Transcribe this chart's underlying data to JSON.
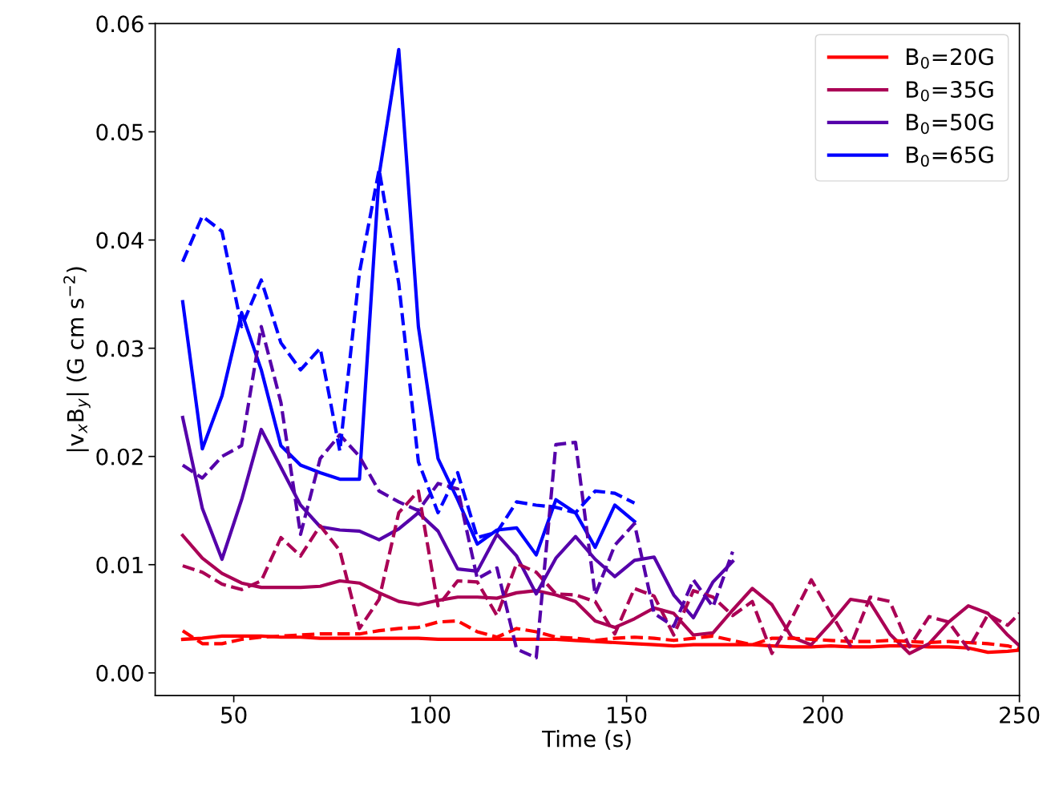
{
  "chart_data": {
    "type": "line",
    "xlabel": "Time (s)",
    "ylabel": "|v$_{x}$B$_{y}$| (G cm s$^{−2}$)",
    "xlim": [
      30,
      250
    ],
    "xticks": [
      50,
      100,
      150,
      200,
      250
    ],
    "ylim": [
      -0.0021,
      0.06
    ],
    "yticks": [
      {
        "value": 0,
        "label": "0.00"
      },
      {
        "value": 0.01,
        "label": "0.01"
      },
      {
        "value": 0.02,
        "label": "0.02"
      },
      {
        "value": 0.03,
        "label": "0.03"
      },
      {
        "value": 0.04,
        "label": "0.04"
      },
      {
        "value": 0.05,
        "label": "0.05"
      },
      {
        "value": 0.06,
        "label": "0.06"
      }
    ],
    "legend": "top right",
    "grid": false,
    "marker": "none",
    "series": [
      {
        "name": "B$_{0}$=20G",
        "color": "#ff0000",
        "line_style": "solid",
        "x": [
          37,
          42,
          47,
          52,
          57,
          62,
          67,
          72,
          77,
          82,
          87,
          92,
          97,
          102,
          107,
          112,
          117,
          122,
          127,
          132,
          137,
          142,
          147,
          152,
          157,
          162,
          167,
          172,
          177,
          182,
          187,
          192,
          197,
          202,
          207,
          212,
          217,
          222,
          227,
          232,
          237,
          242,
          247,
          250
        ],
        "values": [
          0.0031,
          0.0032,
          0.0034,
          0.0034,
          0.0034,
          0.0033,
          0.0033,
          0.0032,
          0.0032,
          0.0032,
          0.0032,
          0.0032,
          0.0032,
          0.0031,
          0.0031,
          0.0031,
          0.0031,
          0.0031,
          0.0031,
          0.0031,
          0.003,
          0.0029,
          0.0028,
          0.0027,
          0.0026,
          0.0025,
          0.0026,
          0.0026,
          0.0026,
          0.0026,
          0.0025,
          0.0024,
          0.0024,
          0.0025,
          0.0024,
          0.0024,
          0.0025,
          0.0025,
          0.0024,
          0.0024,
          0.0023,
          0.0019,
          0.002,
          0.0021
        ]
      },
      {
        "name": "B$_{0}$=35G",
        "color": "#aa0055",
        "line_style": "solid",
        "x": [
          37,
          42,
          47,
          52,
          57,
          62,
          67,
          72,
          77,
          82,
          87,
          92,
          97,
          102,
          107,
          112,
          117,
          122,
          127,
          132,
          137,
          142,
          147,
          152,
          157,
          162,
          167,
          172,
          177,
          182,
          187,
          192,
          197,
          202,
          207,
          212,
          217,
          222,
          227,
          232,
          237,
          242,
          247,
          250
        ],
        "values": [
          0.0127,
          0.0106,
          0.0092,
          0.0083,
          0.0079,
          0.0079,
          0.0079,
          0.008,
          0.0085,
          0.0083,
          0.0074,
          0.0066,
          0.0063,
          0.0067,
          0.007,
          0.007,
          0.0069,
          0.0074,
          0.0076,
          0.0072,
          0.0066,
          0.0048,
          0.0042,
          0.005,
          0.006,
          0.0055,
          0.0035,
          0.0037,
          0.0058,
          0.0078,
          0.0063,
          0.0033,
          0.0026,
          0.0046,
          0.0068,
          0.0065,
          0.0036,
          0.0018,
          0.0027,
          0.0047,
          0.0062,
          0.0055,
          0.0035,
          0.0025
        ]
      },
      {
        "name": "B$_{0}$=50G",
        "color": "#5500aa",
        "line_style": "solid",
        "x": [
          37,
          42,
          47,
          52,
          57,
          62,
          67,
          72,
          77,
          82,
          87,
          92,
          97,
          102,
          107,
          112,
          117,
          122,
          127,
          132,
          137,
          142,
          147,
          152,
          157,
          162,
          167,
          172,
          177
        ],
        "values": [
          0.0236,
          0.0152,
          0.0105,
          0.016,
          0.0225,
          0.019,
          0.0155,
          0.0135,
          0.0132,
          0.0131,
          0.0123,
          0.0133,
          0.0148,
          0.0131,
          0.0096,
          0.0094,
          0.0128,
          0.0108,
          0.0073,
          0.0106,
          0.0126,
          0.0105,
          0.0089,
          0.0104,
          0.0107,
          0.0072,
          0.0051,
          0.0084,
          0.0103
        ]
      },
      {
        "name": "B$_{0}$=65G",
        "color": "#0000ff",
        "line_style": "solid",
        "x": [
          37,
          42,
          47,
          52,
          57,
          62,
          67,
          72,
          77,
          82,
          87,
          92,
          97,
          102,
          107,
          112,
          117,
          122,
          127,
          132,
          137,
          142,
          147,
          152
        ],
        "values": [
          0.0343,
          0.0207,
          0.0256,
          0.0333,
          0.028,
          0.021,
          0.0192,
          0.0185,
          0.0179,
          0.0179,
          0.046,
          0.0576,
          0.032,
          0.0198,
          0.016,
          0.0119,
          0.0132,
          0.0134,
          0.0109,
          0.016,
          0.0148,
          0.0116,
          0.0155,
          0.014
        ]
      },
      {
        "color": "#ff0000",
        "line_style": "dashed",
        "x": [
          37,
          42,
          47,
          52,
          57,
          62,
          67,
          72,
          77,
          82,
          87,
          92,
          97,
          102,
          107,
          112,
          117,
          122,
          127,
          132,
          137,
          142,
          147,
          152,
          157,
          162,
          167,
          172,
          177,
          182,
          187,
          192,
          197,
          202,
          207,
          212,
          217,
          222,
          227,
          232,
          237,
          242,
          247,
          250
        ],
        "values": [
          0.0039,
          0.0027,
          0.0027,
          0.0031,
          0.0033,
          0.0034,
          0.0035,
          0.0036,
          0.0036,
          0.0036,
          0.0039,
          0.0041,
          0.0042,
          0.0047,
          0.0048,
          0.0038,
          0.0033,
          0.0041,
          0.0038,
          0.0033,
          0.0032,
          0.003,
          0.0032,
          0.0033,
          0.0032,
          0.003,
          0.0032,
          0.0034,
          0.003,
          0.0026,
          0.0032,
          0.0032,
          0.0031,
          0.003,
          0.0029,
          0.0029,
          0.003,
          0.0029,
          0.0028,
          0.0029,
          0.0028,
          0.0027,
          0.0025,
          0.0022
        ]
      },
      {
        "color": "#aa0055",
        "line_style": "dashed",
        "x": [
          37,
          42,
          47,
          52,
          57,
          62,
          67,
          72,
          77,
          82,
          87,
          92,
          97,
          102,
          107,
          112,
          117,
          122,
          127,
          132,
          137,
          142,
          147,
          152,
          157,
          162,
          167,
          172,
          177,
          182,
          187,
          192,
          197,
          202,
          207,
          212,
          217,
          222,
          227,
          232,
          237,
          242,
          247,
          250
        ],
        "values": [
          0.0099,
          0.0093,
          0.0082,
          0.0077,
          0.0085,
          0.0125,
          0.0108,
          0.0136,
          0.0113,
          0.0041,
          0.0068,
          0.0148,
          0.0168,
          0.0062,
          0.0085,
          0.0084,
          0.0053,
          0.0101,
          0.0093,
          0.0073,
          0.0072,
          0.0066,
          0.0036,
          0.0078,
          0.0071,
          0.0035,
          0.0076,
          0.007,
          0.0053,
          0.0066,
          0.0018,
          0.005,
          0.0086,
          0.0055,
          0.0025,
          0.007,
          0.0066,
          0.0024,
          0.0052,
          0.0047,
          0.0022,
          0.0054,
          0.0044,
          0.0055
        ]
      },
      {
        "color": "#5500aa",
        "line_style": "dashed",
        "x": [
          37,
          42,
          47,
          52,
          57,
          62,
          67,
          72,
          77,
          82,
          87,
          92,
          97,
          102,
          107,
          112,
          117,
          122,
          127,
          132,
          137,
          142,
          147,
          152,
          157,
          162,
          167,
          172,
          177
        ],
        "values": [
          0.0192,
          0.018,
          0.02,
          0.021,
          0.032,
          0.025,
          0.0128,
          0.0198,
          0.022,
          0.02,
          0.0168,
          0.0158,
          0.015,
          0.0175,
          0.017,
          0.0087,
          0.0097,
          0.0022,
          0.0014,
          0.0211,
          0.0213,
          0.0072,
          0.0118,
          0.0138,
          0.0055,
          0.0043,
          0.0086,
          0.0061,
          0.0112
        ]
      },
      {
        "color": "#0000ff",
        "line_style": "dashed",
        "x": [
          37,
          42,
          47,
          52,
          57,
          62,
          67,
          72,
          77,
          82,
          87,
          92,
          97,
          102,
          107,
          112,
          117,
          122,
          127,
          132,
          137,
          142,
          147,
          152
        ],
        "values": [
          0.038,
          0.0422,
          0.0408,
          0.032,
          0.0363,
          0.0305,
          0.028,
          0.03,
          0.0205,
          0.037,
          0.0465,
          0.036,
          0.0195,
          0.0148,
          0.0185,
          0.0125,
          0.013,
          0.0158,
          0.0155,
          0.0153,
          0.0148,
          0.0168,
          0.0166,
          0.0157
        ]
      }
    ]
  }
}
